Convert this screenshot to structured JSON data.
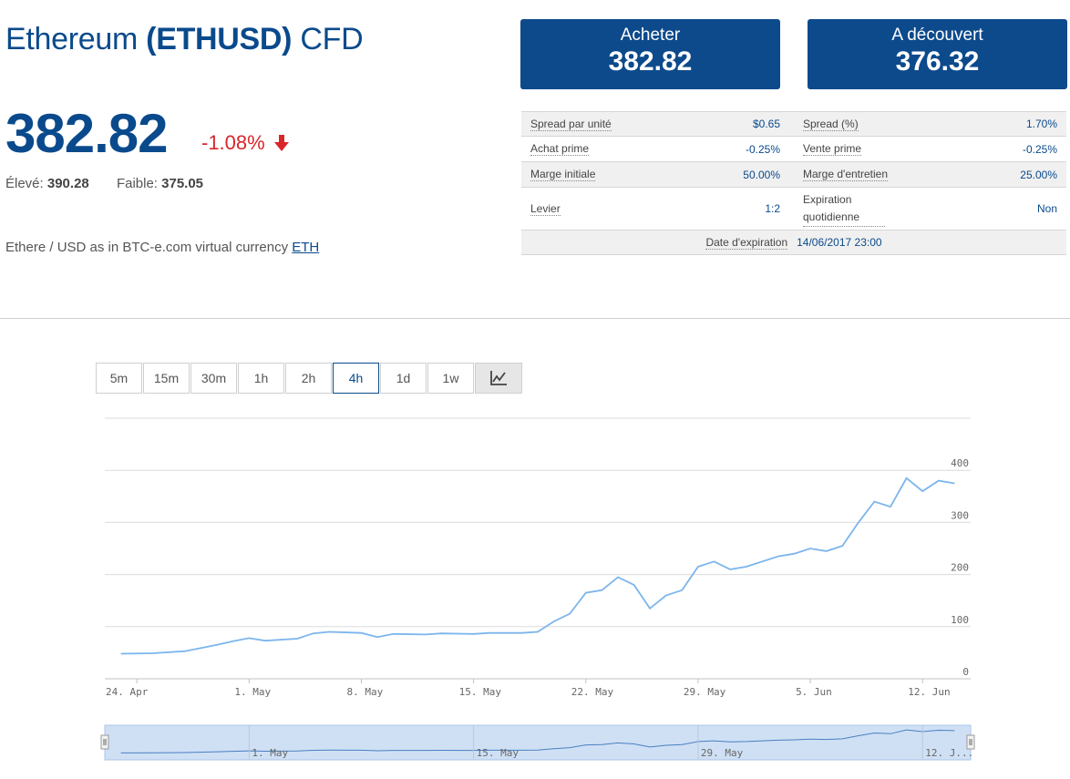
{
  "header": {
    "name": "Ethereum",
    "symbol": "(ETHUSD)",
    "type": "CFD",
    "price": "382.82",
    "change": "-1.08%",
    "high_label": "Élevé:",
    "high_value": "390.28",
    "low_label": "Faible:",
    "low_value": "375.05",
    "description": "Ethere / USD as in BTC-e.com virtual currency",
    "description_link": "ETH"
  },
  "buttons": {
    "buy_label": "Acheter",
    "buy_value": "382.82",
    "sell_label": "A découvert",
    "sell_value": "376.32"
  },
  "specs": {
    "rows": [
      [
        {
          "k": "Spread par unité",
          "v": "$0.65"
        },
        {
          "k": "Spread (%)",
          "v": "1.70%"
        }
      ],
      [
        {
          "k": "Achat prime",
          "v": "-0.25%"
        },
        {
          "k": "Vente prime",
          "v": "-0.25%"
        }
      ],
      [
        {
          "k": "Marge initiale",
          "v": "50.00%"
        },
        {
          "k": "Marge d'entretien",
          "v": "25.00%"
        }
      ],
      [
        {
          "k": "Levier",
          "v": "1:2"
        },
        {
          "k": "Expiration quotidienne",
          "v": "Non"
        }
      ]
    ],
    "expiry_label": "Date d'expiration",
    "expiry_value": "14/06/2017 23:00"
  },
  "timeframes": [
    "5m",
    "15m",
    "30m",
    "1h",
    "2h",
    "4h",
    "1d",
    "1w"
  ],
  "active_timeframe": "4h",
  "chart_type_icon": "line-chart-icon",
  "colors": {
    "brand": "#0d4a8c",
    "negative": "#d9262b",
    "line": "#7cb5ec"
  },
  "chart_data": {
    "type": "line",
    "x_ticks": [
      "24. Apr",
      "1. May",
      "8. May",
      "15. May",
      "22. May",
      "29. May",
      "5. Jun",
      "12. Jun"
    ],
    "y_ticks": [
      0,
      100,
      200,
      300,
      400
    ],
    "ylim": [
      0,
      500
    ],
    "grid": true,
    "x": [
      "2017-04-23",
      "2017-04-25",
      "2017-04-27",
      "2017-04-29",
      "2017-04-30",
      "2017-05-01",
      "2017-05-02",
      "2017-05-04",
      "2017-05-05",
      "2017-05-06",
      "2017-05-08",
      "2017-05-09",
      "2017-05-10",
      "2017-05-12",
      "2017-05-13",
      "2017-05-15",
      "2017-05-16",
      "2017-05-18",
      "2017-05-19",
      "2017-05-20",
      "2017-05-21",
      "2017-05-22",
      "2017-05-23",
      "2017-05-24",
      "2017-05-25",
      "2017-05-26",
      "2017-05-27",
      "2017-05-28",
      "2017-05-29",
      "2017-05-30",
      "2017-05-31",
      "2017-06-01",
      "2017-06-02",
      "2017-06-03",
      "2017-06-04",
      "2017-06-05",
      "2017-06-06",
      "2017-06-07",
      "2017-06-08",
      "2017-06-09",
      "2017-06-10",
      "2017-06-11",
      "2017-06-12",
      "2017-06-13",
      "2017-06-14"
    ],
    "values": [
      48,
      49,
      53,
      65,
      72,
      78,
      73,
      77,
      87,
      90,
      88,
      80,
      86,
      85,
      87,
      86,
      88,
      88,
      90,
      110,
      125,
      165,
      170,
      195,
      180,
      135,
      160,
      170,
      215,
      225,
      210,
      215,
      225,
      235,
      240,
      250,
      245,
      255,
      300,
      340,
      330,
      385,
      360,
      380,
      375
    ],
    "navigator_labels": [
      "1. May",
      "15. May",
      "29. May",
      "12. J..."
    ]
  }
}
